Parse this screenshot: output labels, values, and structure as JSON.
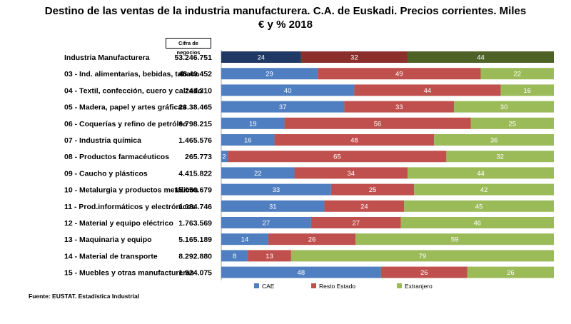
{
  "title": "Destino  de las ventas de la industria  manufacturera.  C.A. de Euskadi.  Precios corrientes. Miles € y %  2018",
  "header_label": "Cifra de negocios",
  "source": "Fuente: EUSTAT. Estadística Industrial",
  "colors": {
    "total": [
      "#1f3864",
      "#8b2f2c",
      "#4e6228"
    ],
    "series": [
      "#4f7fc0",
      "#c0504d",
      "#9bbb59"
    ]
  },
  "chart_data": {
    "type": "bar",
    "stacked": true,
    "orientation": "horizontal",
    "unit": "%",
    "categories": [
      "Industria Manufacturera",
      "03 - Ind. alimentarias, bebidas, tabaco",
      "04 - Textil, confección, cuero y calzado",
      "05 - Madera, papel y artes gráficas",
      "06 - Coquerías y refino de petróleo",
      "07 - Industria química",
      "08 - Productos farmacéuticos",
      "09 - Caucho y plásticos",
      "10 - Metalurgia y productos metálicos",
      "11 - Prod.informáticos y electrónicos",
      "12 - Material y equipo eléctrico",
      "13 - Maquinaria y equipo",
      "14 - Material de transporte",
      "15 - Muebles y otras manufactureras"
    ],
    "cifra_negocios": [
      "53.246.751",
      "48.40.452",
      "241.310",
      "23.38.465",
      "6.798.215",
      "1.465.576",
      "265.773",
      "4.415.822",
      "15.050.679",
      "1.084.746",
      "1.763.569",
      "5.165.189",
      "8.292.880",
      "1.524.075"
    ],
    "series": [
      {
        "name": "CAE",
        "values": [
          24,
          29,
          40,
          37,
          19,
          16,
          2,
          22,
          33,
          31,
          27,
          14,
          8,
          48
        ]
      },
      {
        "name": "Resto Estado",
        "values": [
          32,
          49,
          44,
          33,
          56,
          48,
          65,
          34,
          25,
          24,
          27,
          26,
          13,
          26
        ]
      },
      {
        "name": "Extranjero",
        "values": [
          44,
          22,
          16,
          30,
          25,
          36,
          32,
          44,
          42,
          45,
          46,
          59,
          79,
          26
        ]
      }
    ],
    "xlim": [
      0,
      100
    ],
    "legend_position": "bottom"
  }
}
